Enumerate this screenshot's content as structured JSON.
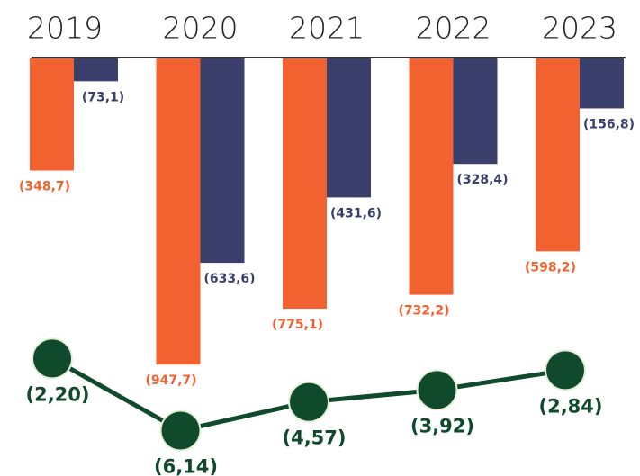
{
  "chart_data": {
    "type": "bar",
    "categories": [
      "2019",
      "2020",
      "2021",
      "2022",
      "2023"
    ],
    "ylim": [
      -1000,
      0
    ],
    "y2lim": [
      -7,
      -1
    ],
    "series": [
      {
        "color": "#f26230",
        "values": [
          -348.7,
          -947.7,
          -775.1,
          -732.2,
          -598.2
        ],
        "value_labels": [
          "(348,7)",
          "(947,7)",
          "(775,1)",
          "(732,2)",
          "(598,2)"
        ]
      },
      {
        "color": "#3a3f6b",
        "values": [
          -73.1,
          -633.6,
          -431.6,
          -328.4,
          -156.8
        ],
        "value_labels": [
          "(73,1)",
          "(633,6)",
          "(431,6)",
          "(328,4)",
          "(156,8)"
        ]
      },
      {
        "type": "line",
        "axis": "y2",
        "color": "#0e4a2b",
        "values": [
          -2.2,
          -6.14,
          -4.57,
          -3.92,
          -2.84
        ],
        "value_labels": [
          "(2,20)",
          "(6,14)",
          "(4,57)",
          "(3,92)",
          "(2,84)"
        ]
      }
    ]
  }
}
